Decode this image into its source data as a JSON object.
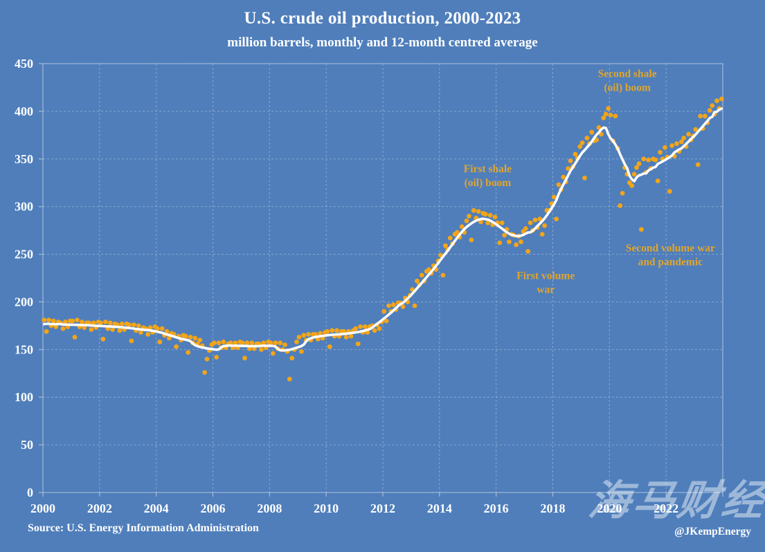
{
  "title": "U.S. crude oil production, 2000-2023",
  "subtitle": "million barrels, monthly and 12-month centred average",
  "source": "Source: U.S. Energy Information Administration",
  "credit": "@JKempEnergy",
  "watermark": "海马财经",
  "colors": {
    "background": "#4F7EBB",
    "grid": "#9FB4D4",
    "border": "#A9BCD8",
    "point": "#F2A51A",
    "average_line": "#FFFFFF",
    "annotation": "#E0A52E",
    "axis_text": "#FFFFFF"
  },
  "chart_data": {
    "type": "scatter",
    "title": "U.S. crude oil production, 2000-2023",
    "subtitle": "million barrels, monthly and 12-month centred average",
    "xlabel": "",
    "ylabel": "million barrels",
    "x_range": [
      2000,
      2024
    ],
    "y_range": [
      0,
      450
    ],
    "x_tick_labels": [
      "2000",
      "2002",
      "2004",
      "2006",
      "2008",
      "2010",
      "2012",
      "2014",
      "2016",
      "2018",
      "2020",
      "2022"
    ],
    "x_tick_years": [
      2000,
      2002,
      2004,
      2006,
      2008,
      2010,
      2012,
      2014,
      2016,
      2018,
      2020,
      2022
    ],
    "y_ticks": [
      0,
      50,
      100,
      150,
      200,
      250,
      300,
      350,
      400,
      450
    ],
    "grid": "dashed",
    "legend_position": "none",
    "series": [
      {
        "name": "monthly production (million barrels)",
        "type": "scatter",
        "start": "2000-01",
        "end": "2023-12",
        "values": [
          181,
          169,
          181,
          175,
          180,
          174,
          179,
          178,
          172,
          179,
          174,
          180,
          180,
          163,
          181,
          174,
          179,
          173,
          178,
          178,
          171,
          178,
          173,
          179,
          178,
          161,
          179,
          172,
          178,
          171,
          177,
          176,
          170,
          177,
          171,
          177,
          176,
          159,
          176,
          170,
          175,
          168,
          173,
          172,
          166,
          173,
          168,
          174,
          172,
          158,
          172,
          165,
          169,
          162,
          167,
          166,
          153,
          164,
          160,
          165,
          164,
          147,
          163,
          157,
          162,
          156,
          160,
          154,
          126,
          140,
          149,
          155,
          157,
          142,
          157,
          152,
          158,
          152,
          156,
          157,
          152,
          157,
          152,
          158,
          157,
          141,
          157,
          151,
          157,
          151,
          156,
          156,
          150,
          157,
          152,
          158,
          157,
          146,
          157,
          151,
          157,
          150,
          155,
          148,
          119,
          141,
          150,
          158,
          163,
          148,
          165,
          160,
          166,
          160,
          166,
          166,
          161,
          167,
          162,
          168,
          169,
          153,
          170,
          164,
          170,
          164,
          169,
          169,
          163,
          169,
          164,
          170,
          172,
          156,
          174,
          168,
          174,
          168,
          174,
          175,
          170,
          176,
          172,
          179,
          190,
          180,
          196,
          190,
          197,
          192,
          199,
          199,
          195,
          204,
          200,
          207,
          213,
          196,
          222,
          218,
          228,
          222,
          232,
          234,
          230,
          238,
          234,
          243,
          249,
          228,
          259,
          255,
          267,
          261,
          271,
          273,
          268,
          279,
          273,
          285,
          290,
          265,
          296,
          288,
          295,
          284,
          293,
          292,
          283,
          291,
          281,
          289,
          283,
          262,
          283,
          270,
          276,
          263,
          271,
          270,
          260,
          269,
          263,
          274,
          277,
          253,
          283,
          275,
          286,
          278,
          287,
          271,
          280,
          296,
          296,
          303,
          310,
          287,
          323,
          318,
          331,
          326,
          340,
          348,
          342,
          355,
          351,
          363,
          367,
          330,
          372,
          366,
          378,
          369,
          370,
          383,
          376,
          393,
          397,
          403,
          396,
          369,
          395,
          361,
          301,
          314,
          341,
          334,
          325,
          322,
          334,
          341,
          345,
          276,
          350,
          336,
          349,
          340,
          350,
          349,
          327,
          357,
          350,
          362,
          352,
          316,
          364,
          353,
          366,
          358,
          368,
          372,
          363,
          376,
          370,
          374,
          381,
          344,
          395,
          382,
          395,
          388,
          401,
          406,
          397,
          411,
          403,
          413
        ]
      },
      {
        "name": "12-month centred average",
        "type": "line",
        "derived_from": "monthly production (million barrels)",
        "method": "centred mean over 12 months"
      }
    ],
    "annotations": [
      {
        "id": "first-shale-boom",
        "lines": [
          "First shale",
          "(oil) boom"
        ],
        "year": 2015.7,
        "value": 336
      },
      {
        "id": "second-shale-boom",
        "lines": [
          "Second shale",
          "(oil) boom"
        ],
        "year": 2020.63,
        "value": 436
      },
      {
        "id": "first-volume-war",
        "lines": [
          "First volume",
          "war"
        ],
        "year": 2017.75,
        "value": 224
      },
      {
        "id": "second-volume-war",
        "lines": [
          "Second volume war",
          "and pandemic"
        ],
        "year": 2022.15,
        "value": 253
      }
    ]
  }
}
